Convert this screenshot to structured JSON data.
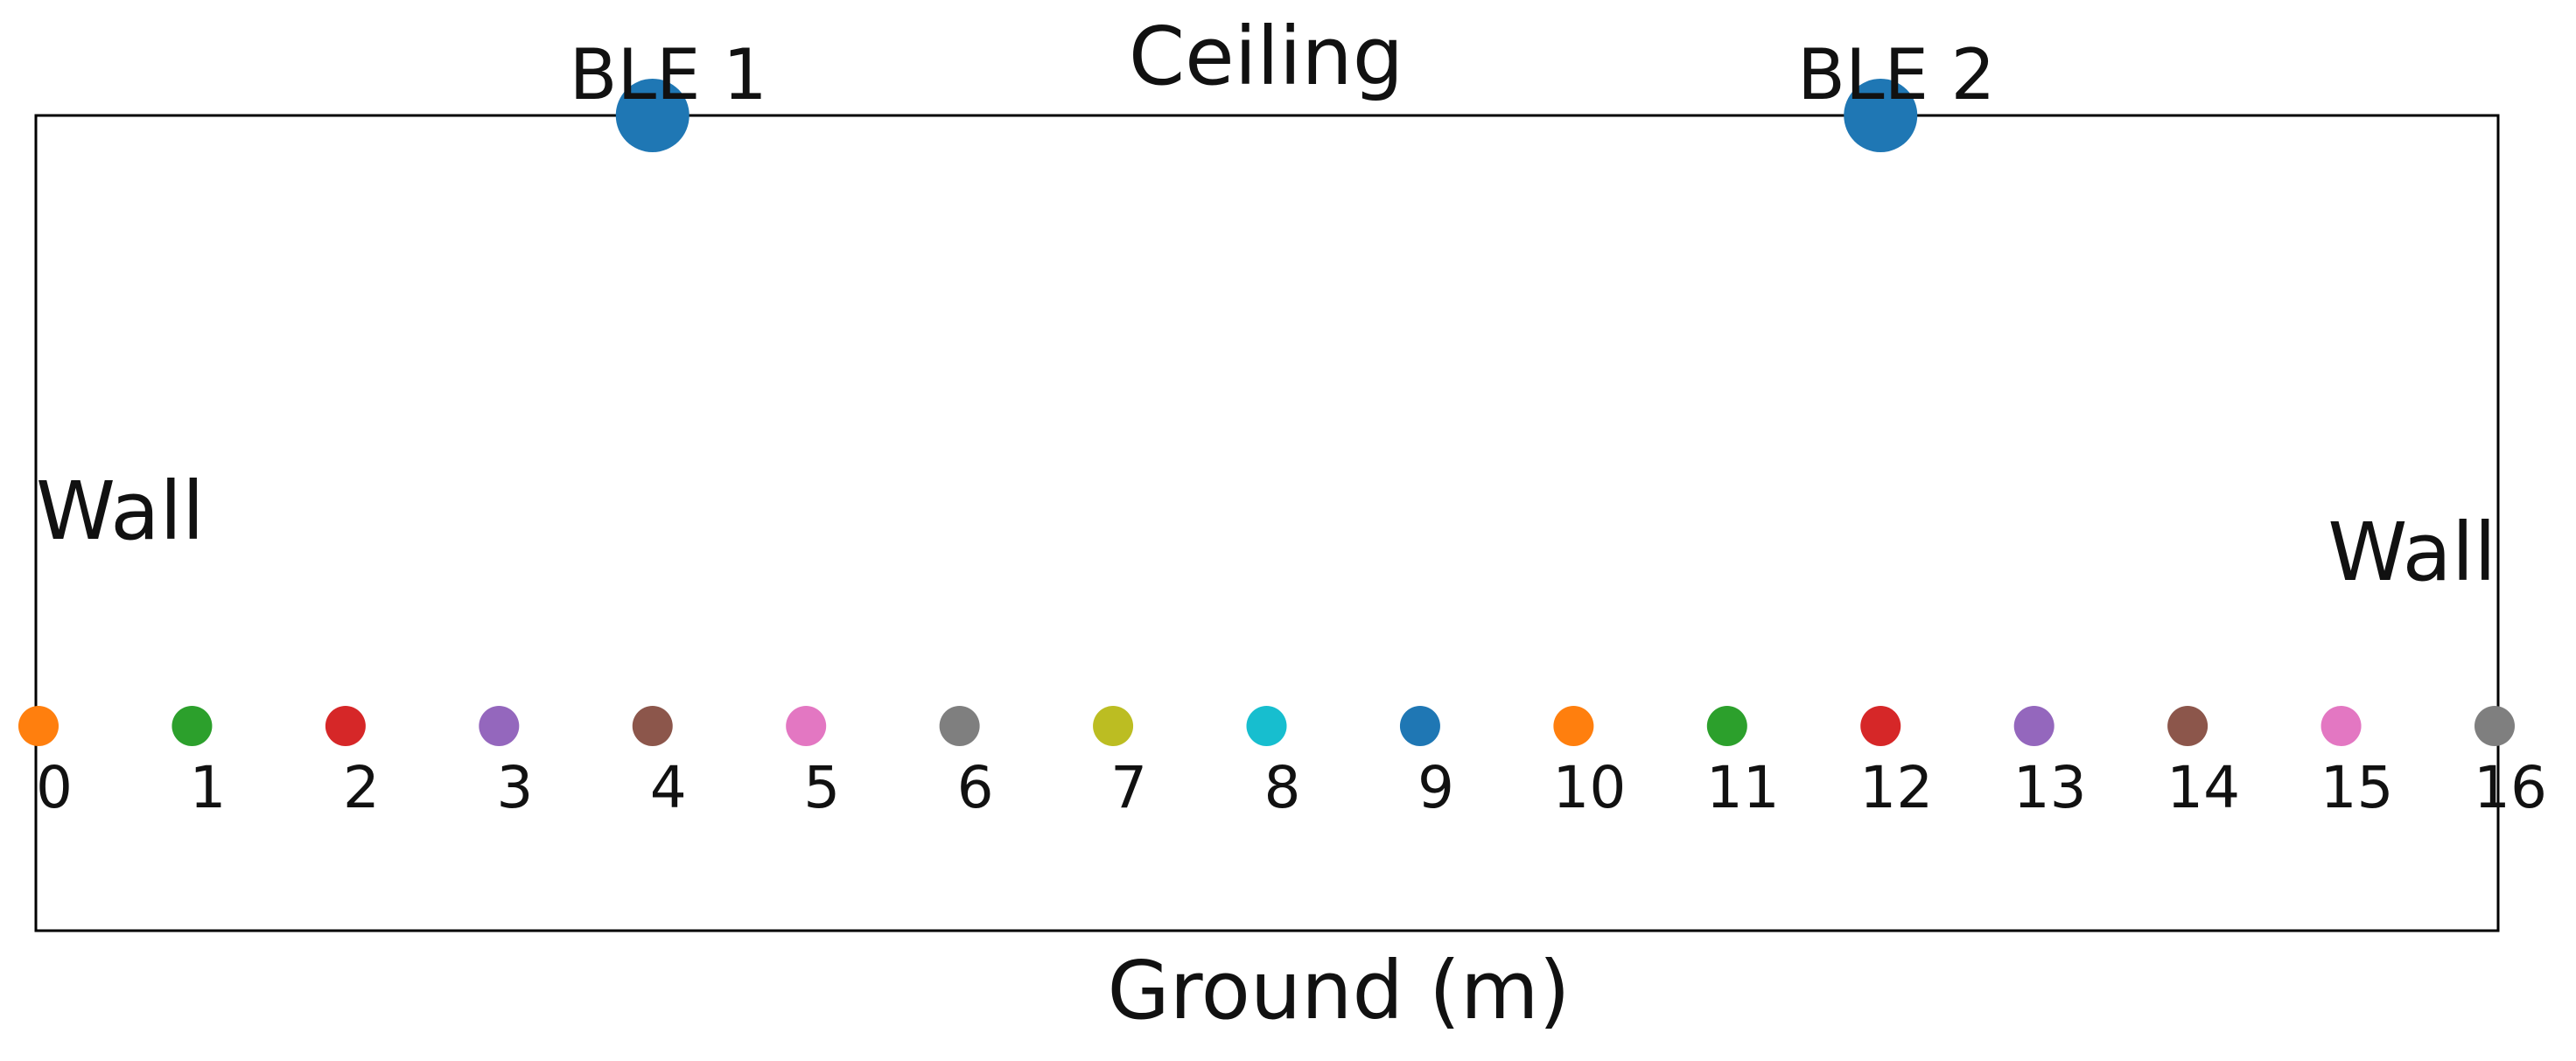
{
  "labels": {
    "ceiling": "Ceiling",
    "wall_left": "Wall",
    "wall_right": "Wall",
    "xlabel": "Ground (m)"
  },
  "beacons": [
    {
      "label": "BLE 1",
      "x": 4,
      "color": "#1f77b4"
    },
    {
      "label": "BLE 2",
      "x": 12,
      "color": "#1f77b4"
    }
  ],
  "points": [
    {
      "label": "0",
      "x": 0,
      "color": "#ff7f0e"
    },
    {
      "label": "1",
      "x": 1,
      "color": "#2ca02c"
    },
    {
      "label": "2",
      "x": 2,
      "color": "#d62728"
    },
    {
      "label": "3",
      "x": 3,
      "color": "#9467bd"
    },
    {
      "label": "4",
      "x": 4,
      "color": "#8c564b"
    },
    {
      "label": "5",
      "x": 5,
      "color": "#e377c2"
    },
    {
      "label": "6",
      "x": 6,
      "color": "#7f7f7f"
    },
    {
      "label": "7",
      "x": 7,
      "color": "#bcbd22"
    },
    {
      "label": "8",
      "x": 8,
      "color": "#17becf"
    },
    {
      "label": "9",
      "x": 9,
      "color": "#1f77b4"
    },
    {
      "label": "10",
      "x": 10,
      "color": "#ff7f0e"
    },
    {
      "label": "11",
      "x": 11,
      "color": "#2ca02c"
    },
    {
      "label": "12",
      "x": 12,
      "color": "#d62728"
    },
    {
      "label": "13",
      "x": 13,
      "color": "#9467bd"
    },
    {
      "label": "14",
      "x": 14,
      "color": "#8c564b"
    },
    {
      "label": "15",
      "x": 15,
      "color": "#e377c2"
    },
    {
      "label": "16",
      "x": 16,
      "color": "#7f7f7f"
    }
  ],
  "x_range": [
    0,
    16
  ]
}
